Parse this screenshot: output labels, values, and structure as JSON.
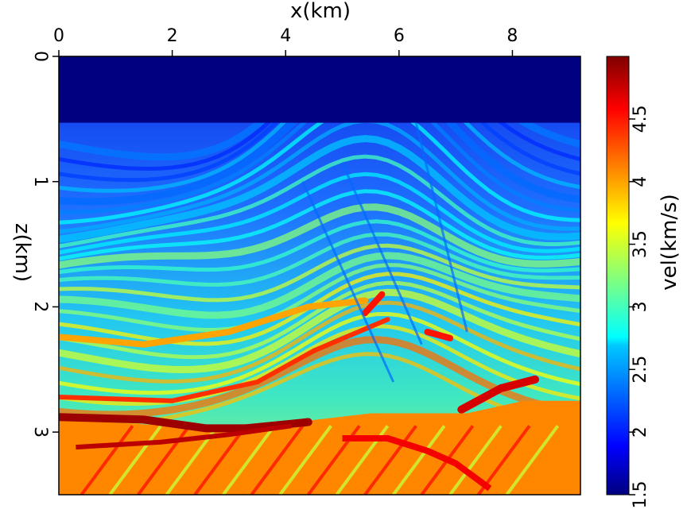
{
  "chart_data": {
    "type": "heatmap",
    "title": "",
    "xlabel": "x(km)",
    "ylabel": "z(km)",
    "xlim": [
      0,
      9.2
    ],
    "ylim": [
      3.5,
      0
    ],
    "x_axis_position": "top",
    "xticks": [
      0,
      2,
      4,
      6,
      8
    ],
    "xtick_labels": [
      "0",
      "2",
      "4",
      "6",
      "8"
    ],
    "yticks": [
      0,
      1,
      2,
      3
    ],
    "ytick_labels": [
      "0",
      "1",
      "2",
      "3"
    ],
    "grid": false,
    "colorbar": {
      "label": "vel(km/s)",
      "range": [
        1.5,
        5.0
      ],
      "ticks": [
        1.5,
        2,
        2.5,
        3,
        3.5,
        4,
        4.5
      ],
      "tick_labels": [
        "1.5",
        "2",
        "2.5",
        "3",
        "3.5",
        "4",
        "4.5"
      ],
      "colormap": "jet",
      "position": "right"
    },
    "description_values": {
      "water_layer_bottom_km": 0.53,
      "water_velocity_kms": 1.5,
      "deep_unconformity_depth_km": 2.9,
      "max_velocity_kms": 4.9
    }
  }
}
